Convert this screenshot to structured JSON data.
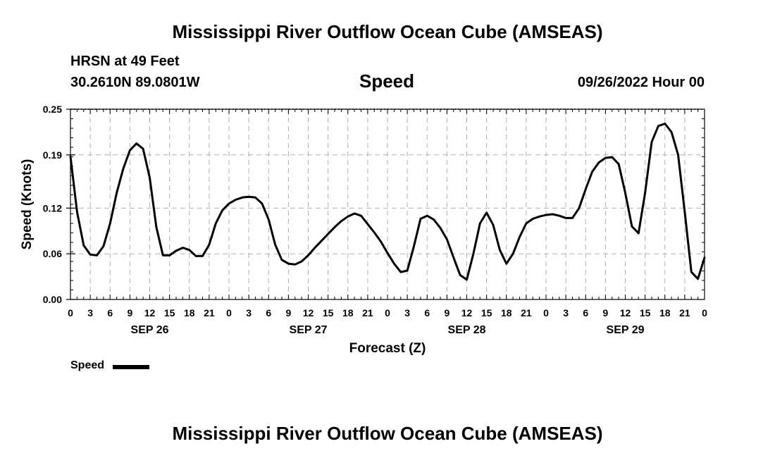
{
  "page": {
    "title_top": "Mississippi River Outflow Ocean Cube (AMSEAS)",
    "title_bottom": "Mississippi River Outflow Ocean Cube (AMSEAS)",
    "station_line": "HRSN at 49 Feet",
    "coords_line": "30.2610N  89.0801W",
    "panel_title": "Speed",
    "date_line": "09/26/2022 Hour 00",
    "legend_label": "Speed"
  },
  "chart_data": {
    "type": "line",
    "title": "Speed",
    "xlabel": "Forecast (Z)",
    "ylabel": "Speed (Knots)",
    "ylim": [
      0,
      0.25
    ],
    "yticks": [
      0.0,
      0.06,
      0.12,
      0.19,
      0.25
    ],
    "ytick_labels": [
      "0.00",
      "0.06",
      "0.12",
      "0.19",
      "0.25"
    ],
    "xlim": [
      0,
      96
    ],
    "xticks": [
      0,
      3,
      6,
      9,
      12,
      15,
      18,
      21,
      24,
      27,
      30,
      33,
      36,
      39,
      42,
      45,
      48,
      51,
      54,
      57,
      60,
      63,
      66,
      69,
      72,
      75,
      78,
      81,
      84,
      87,
      90,
      93,
      96
    ],
    "xtick_labels": [
      "0",
      "3",
      "6",
      "9",
      "12",
      "15",
      "18",
      "21",
      "0",
      "3",
      "6",
      "9",
      "12",
      "15",
      "18",
      "21",
      "0",
      "3",
      "6",
      "9",
      "12",
      "15",
      "18",
      "21",
      "0",
      "3",
      "6",
      "9",
      "12",
      "15",
      "18",
      "21",
      "0"
    ],
    "day_labels": [
      {
        "x": 12,
        "label": "SEP 26"
      },
      {
        "x": 36,
        "label": "SEP 27"
      },
      {
        "x": 60,
        "label": "SEP 28"
      },
      {
        "x": 84,
        "label": "SEP 29"
      }
    ],
    "grid": true,
    "series": [
      {
        "name": "Speed",
        "color": "#000000",
        "x": [
          0,
          1,
          2,
          3,
          4,
          5,
          6,
          7,
          8,
          9,
          10,
          11,
          12,
          13,
          14,
          15,
          16,
          17,
          18,
          19,
          20,
          21,
          22,
          23,
          24,
          25,
          26,
          27,
          28,
          29,
          30,
          31,
          32,
          33,
          34,
          35,
          36,
          37,
          38,
          39,
          40,
          41,
          42,
          43,
          44,
          45,
          46,
          47,
          48,
          49,
          50,
          51,
          52,
          53,
          54,
          55,
          56,
          57,
          58,
          59,
          60,
          61,
          62,
          63,
          64,
          65,
          66,
          67,
          68,
          69,
          70,
          71,
          72,
          73,
          74,
          75,
          76,
          77,
          78,
          79,
          80,
          81,
          82,
          83,
          84,
          85,
          86,
          87,
          88,
          89,
          90,
          91,
          92,
          93,
          94,
          95,
          96
        ],
        "values": [
          0.188,
          0.115,
          0.071,
          0.059,
          0.058,
          0.07,
          0.1,
          0.14,
          0.172,
          0.196,
          0.205,
          0.198,
          0.16,
          0.095,
          0.058,
          0.058,
          0.064,
          0.068,
          0.065,
          0.057,
          0.057,
          0.072,
          0.1,
          0.117,
          0.126,
          0.131,
          0.134,
          0.135,
          0.134,
          0.126,
          0.105,
          0.072,
          0.052,
          0.047,
          0.046,
          0.05,
          0.058,
          0.068,
          0.077,
          0.086,
          0.095,
          0.103,
          0.109,
          0.113,
          0.11,
          0.099,
          0.088,
          0.076,
          0.061,
          0.047,
          0.036,
          0.038,
          0.07,
          0.106,
          0.11,
          0.105,
          0.094,
          0.079,
          0.055,
          0.032,
          0.026,
          0.06,
          0.1,
          0.114,
          0.098,
          0.065,
          0.047,
          0.06,
          0.082,
          0.1,
          0.106,
          0.109,
          0.111,
          0.112,
          0.11,
          0.107,
          0.107,
          0.12,
          0.145,
          0.168,
          0.18,
          0.186,
          0.187,
          0.178,
          0.14,
          0.096,
          0.087,
          0.14,
          0.207,
          0.228,
          0.231,
          0.22,
          0.19,
          0.115,
          0.036,
          0.027,
          0.055
        ]
      }
    ]
  }
}
